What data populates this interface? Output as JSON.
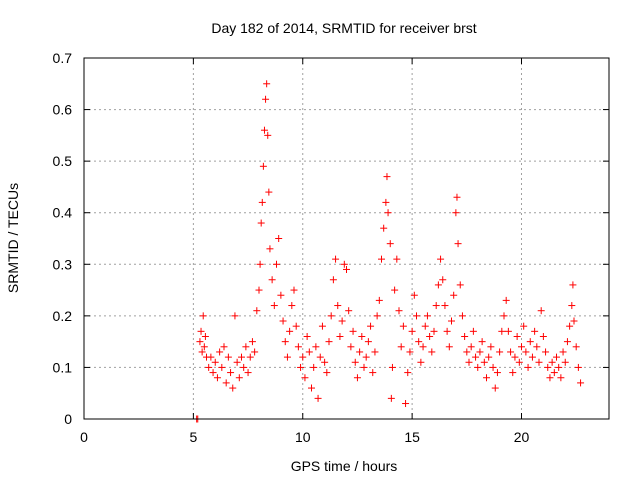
{
  "chart_data": {
    "type": "scatter",
    "title": "Day 182 of 2014, SRMTID for receiver brst",
    "xlabel": "GPS time / hours",
    "ylabel": "SRMTID / TECUs",
    "xlim": [
      0,
      24
    ],
    "ylim": [
      0,
      0.7
    ],
    "x_ticks": [
      0,
      5,
      10,
      15,
      20
    ],
    "x_tick_labels": [
      "0",
      "5",
      "10",
      "15",
      "20"
    ],
    "y_ticks": [
      0,
      0.1,
      0.2,
      0.3,
      0.4,
      0.5,
      0.6,
      0.7
    ],
    "y_tick_labels": [
      "0",
      "0.1",
      "0.2",
      "0.3",
      "0.4",
      "0.5",
      "0.6",
      "0.7"
    ],
    "grid": true,
    "marker": "plus",
    "series_color": "#ff0000",
    "data_range_hours": [
      5.2,
      22.7
    ],
    "points": [
      [
        5.15,
        0.0
      ],
      [
        5.2,
        0.0
      ],
      [
        5.3,
        0.15
      ],
      [
        5.35,
        0.17
      ],
      [
        5.4,
        0.13
      ],
      [
        5.45,
        0.2
      ],
      [
        5.5,
        0.14
      ],
      [
        5.55,
        0.16
      ],
      [
        5.6,
        0.12
      ],
      [
        5.7,
        0.1
      ],
      [
        5.8,
        0.12
      ],
      [
        5.9,
        0.09
      ],
      [
        6.0,
        0.11
      ],
      [
        6.1,
        0.08
      ],
      [
        6.2,
        0.13
      ],
      [
        6.3,
        0.1
      ],
      [
        6.4,
        0.14
      ],
      [
        6.5,
        0.07
      ],
      [
        6.6,
        0.12
      ],
      [
        6.7,
        0.09
      ],
      [
        6.8,
        0.06
      ],
      [
        6.9,
        0.2
      ],
      [
        7.0,
        0.11
      ],
      [
        7.1,
        0.08
      ],
      [
        7.2,
        0.12
      ],
      [
        7.3,
        0.1
      ],
      [
        7.4,
        0.14
      ],
      [
        7.5,
        0.09
      ],
      [
        7.6,
        0.12
      ],
      [
        7.7,
        0.15
      ],
      [
        7.8,
        0.13
      ],
      [
        7.9,
        0.21
      ],
      [
        8.0,
        0.25
      ],
      [
        8.05,
        0.3
      ],
      [
        8.1,
        0.38
      ],
      [
        8.15,
        0.42
      ],
      [
        8.2,
        0.49
      ],
      [
        8.25,
        0.56
      ],
      [
        8.3,
        0.62
      ],
      [
        8.35,
        0.65
      ],
      [
        8.4,
        0.55
      ],
      [
        8.45,
        0.44
      ],
      [
        8.5,
        0.33
      ],
      [
        8.6,
        0.27
      ],
      [
        8.7,
        0.22
      ],
      [
        8.8,
        0.3
      ],
      [
        8.9,
        0.35
      ],
      [
        9.0,
        0.24
      ],
      [
        9.1,
        0.19
      ],
      [
        9.2,
        0.15
      ],
      [
        9.3,
        0.12
      ],
      [
        9.4,
        0.17
      ],
      [
        9.5,
        0.22
      ],
      [
        9.6,
        0.25
      ],
      [
        9.7,
        0.18
      ],
      [
        9.8,
        0.14
      ],
      [
        9.9,
        0.1
      ],
      [
        10.0,
        0.12
      ],
      [
        10.1,
        0.08
      ],
      [
        10.2,
        0.16
      ],
      [
        10.3,
        0.13
      ],
      [
        10.4,
        0.06
      ],
      [
        10.5,
        0.1
      ],
      [
        10.6,
        0.14
      ],
      [
        10.7,
        0.04
      ],
      [
        10.8,
        0.12
      ],
      [
        10.9,
        0.18
      ],
      [
        11.0,
        0.11
      ],
      [
        11.1,
        0.09
      ],
      [
        11.2,
        0.15
      ],
      [
        11.3,
        0.2
      ],
      [
        11.4,
        0.27
      ],
      [
        11.5,
        0.31
      ],
      [
        11.6,
        0.22
      ],
      [
        11.7,
        0.16
      ],
      [
        11.8,
        0.19
      ],
      [
        11.9,
        0.3
      ],
      [
        12.0,
        0.29
      ],
      [
        12.1,
        0.21
      ],
      [
        12.2,
        0.14
      ],
      [
        12.3,
        0.17
      ],
      [
        12.4,
        0.11
      ],
      [
        12.5,
        0.08
      ],
      [
        12.6,
        0.13
      ],
      [
        12.7,
        0.16
      ],
      [
        12.8,
        0.1
      ],
      [
        12.9,
        0.12
      ],
      [
        13.0,
        0.15
      ],
      [
        13.1,
        0.18
      ],
      [
        13.2,
        0.09
      ],
      [
        13.3,
        0.13
      ],
      [
        13.4,
        0.2
      ],
      [
        13.5,
        0.23
      ],
      [
        13.6,
        0.31
      ],
      [
        13.7,
        0.37
      ],
      [
        13.8,
        0.42
      ],
      [
        13.85,
        0.47
      ],
      [
        13.9,
        0.4
      ],
      [
        14.0,
        0.34
      ],
      [
        14.05,
        0.04
      ],
      [
        14.1,
        0.1
      ],
      [
        14.2,
        0.25
      ],
      [
        14.3,
        0.31
      ],
      [
        14.4,
        0.21
      ],
      [
        14.5,
        0.14
      ],
      [
        14.6,
        0.18
      ],
      [
        14.7,
        0.03
      ],
      [
        14.8,
        0.09
      ],
      [
        14.9,
        0.13
      ],
      [
        15.0,
        0.17
      ],
      [
        15.1,
        0.24
      ],
      [
        15.2,
        0.2
      ],
      [
        15.3,
        0.15
      ],
      [
        15.4,
        0.11
      ],
      [
        15.5,
        0.14
      ],
      [
        15.6,
        0.18
      ],
      [
        15.7,
        0.2
      ],
      [
        15.8,
        0.16
      ],
      [
        15.9,
        0.13
      ],
      [
        16.0,
        0.17
      ],
      [
        16.1,
        0.22
      ],
      [
        16.2,
        0.26
      ],
      [
        16.3,
        0.31
      ],
      [
        16.4,
        0.27
      ],
      [
        16.5,
        0.22
      ],
      [
        16.6,
        0.17
      ],
      [
        16.7,
        0.14
      ],
      [
        16.8,
        0.19
      ],
      [
        16.9,
        0.24
      ],
      [
        17.0,
        0.4
      ],
      [
        17.05,
        0.43
      ],
      [
        17.1,
        0.34
      ],
      [
        17.2,
        0.26
      ],
      [
        17.3,
        0.2
      ],
      [
        17.4,
        0.16
      ],
      [
        17.5,
        0.13
      ],
      [
        17.6,
        0.11
      ],
      [
        17.7,
        0.14
      ],
      [
        17.8,
        0.17
      ],
      [
        17.9,
        0.12
      ],
      [
        18.0,
        0.1
      ],
      [
        18.1,
        0.13
      ],
      [
        18.2,
        0.15
      ],
      [
        18.3,
        0.11
      ],
      [
        18.4,
        0.08
      ],
      [
        18.5,
        0.12
      ],
      [
        18.6,
        0.14
      ],
      [
        18.7,
        0.1
      ],
      [
        18.8,
        0.06
      ],
      [
        18.9,
        0.09
      ],
      [
        19.0,
        0.13
      ],
      [
        19.1,
        0.17
      ],
      [
        19.2,
        0.2
      ],
      [
        19.3,
        0.23
      ],
      [
        19.4,
        0.17
      ],
      [
        19.5,
        0.13
      ],
      [
        19.6,
        0.09
      ],
      [
        19.7,
        0.12
      ],
      [
        19.8,
        0.16
      ],
      [
        19.9,
        0.11
      ],
      [
        20.0,
        0.14
      ],
      [
        20.1,
        0.18
      ],
      [
        20.2,
        0.13
      ],
      [
        20.3,
        0.1
      ],
      [
        20.4,
        0.15
      ],
      [
        20.5,
        0.12
      ],
      [
        20.6,
        0.17
      ],
      [
        20.7,
        0.14
      ],
      [
        20.8,
        0.11
      ],
      [
        20.9,
        0.21
      ],
      [
        21.0,
        0.16
      ],
      [
        21.1,
        0.13
      ],
      [
        21.2,
        0.1
      ],
      [
        21.3,
        0.08
      ],
      [
        21.4,
        0.11
      ],
      [
        21.5,
        0.09
      ],
      [
        21.6,
        0.12
      ],
      [
        21.7,
        0.1
      ],
      [
        21.8,
        0.08
      ],
      [
        21.9,
        0.13
      ],
      [
        22.0,
        0.11
      ],
      [
        22.1,
        0.15
      ],
      [
        22.2,
        0.18
      ],
      [
        22.3,
        0.22
      ],
      [
        22.35,
        0.26
      ],
      [
        22.4,
        0.19
      ],
      [
        22.5,
        0.14
      ],
      [
        22.6,
        0.1
      ],
      [
        22.7,
        0.07
      ]
    ]
  }
}
